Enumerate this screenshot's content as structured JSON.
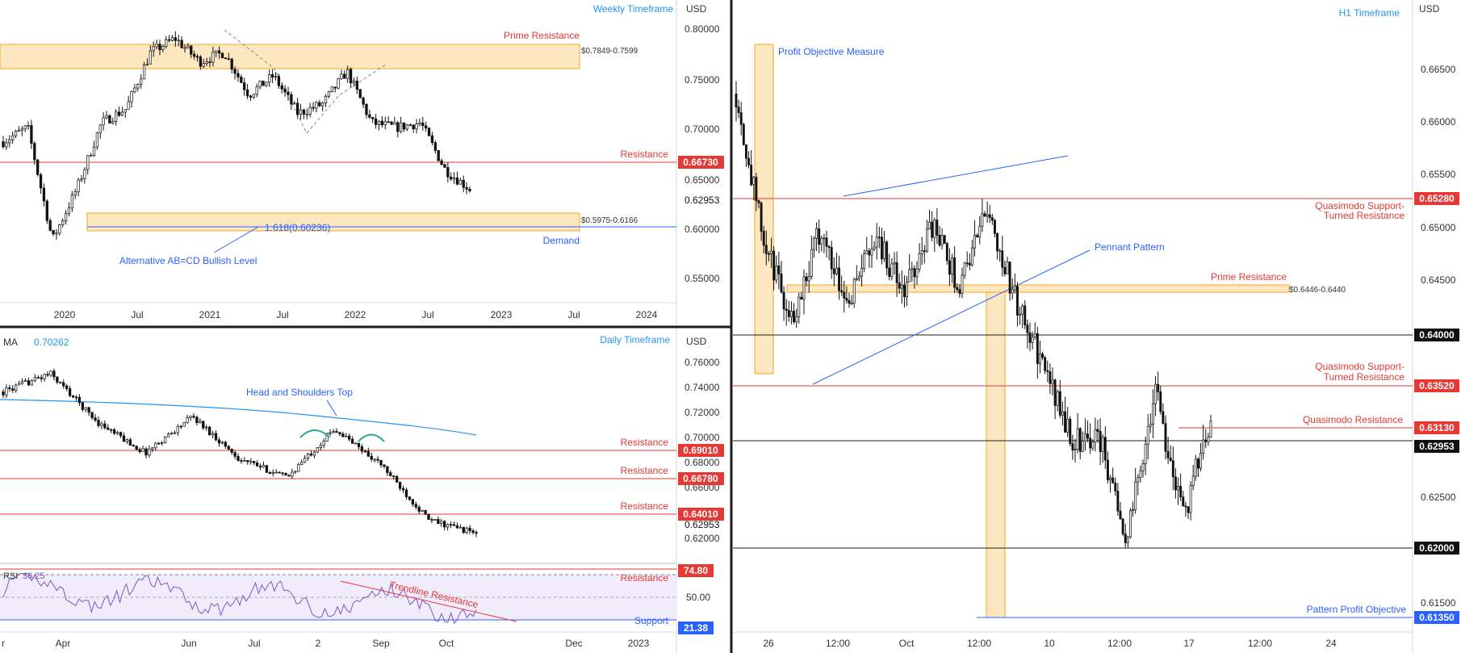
{
  "colors": {
    "up": "#ffffff",
    "down": "#111111",
    "wick": "#111111",
    "red_line": "#e53935",
    "blue_line": "#2962ff",
    "ma_line": "#2196f3",
    "zone_fill": "#fde7c1",
    "zone_stroke": "#f5a623",
    "rsi_line": "#7e57c2",
    "rsi_band": "#f1ecfb",
    "teal": "#26a69a"
  },
  "panels": {
    "weekly": {
      "timeframe": "Weekly Timeframe",
      "currency": "USD",
      "price_labels": [
        "0.80000",
        "0.75000",
        "0.70000",
        "0.65000",
        "0.60000",
        "0.55000"
      ],
      "current_price": "0.62953",
      "resistance_tag": "0.66730",
      "time_labels": [
        "2020",
        "Jul",
        "2021",
        "Jul",
        "2022",
        "Jul",
        "2023",
        "Jul",
        "2024"
      ],
      "annotations": {
        "prime_resistance": "Prime Resistance",
        "prime_zone": "$0.7849-0.7599",
        "resistance": "Resistance",
        "demand_zone": "$0.5975-0.6166",
        "fib": "1.618(0.60236)",
        "demand": "Demand",
        "abcd": "Alternative AB=CD Bullish Level"
      }
    },
    "daily": {
      "timeframe": "Daily Timeframe",
      "currency": "USD",
      "ma_label": "MA",
      "ma_value": "0.70262",
      "price_labels": [
        "0.76000",
        "0.74000",
        "0.72000",
        "0.70000",
        "0.68000",
        "0.66000",
        "0.62000"
      ],
      "current_price": "0.62953",
      "resistance_tags": [
        "0.69010",
        "0.66780",
        "0.64010"
      ],
      "time_labels": [
        "r",
        "Apr",
        "Jun",
        "Jul",
        "2",
        "Sep",
        "Oct",
        "Dec",
        "2023"
      ],
      "annotations": {
        "head_shoulders": "Head and Shoulders Top",
        "resistance_1": "Resistance",
        "resistance_2": "Resistance",
        "resistance_3": "Resistance"
      },
      "rsi": {
        "label": "RSI",
        "value": "36.25",
        "upper_tag": "74.80",
        "lower_tag": "21.38",
        "mid_label": "50.00",
        "trendline": "Trendline Resistance",
        "resistance": "Resistance",
        "support": "Support"
      }
    },
    "h1": {
      "timeframe": "H1 Timeframe",
      "currency": "USD",
      "price_labels": [
        "0.66500",
        "0.66000",
        "0.65500",
        "0.65000",
        "0.64500",
        "0.62500",
        "0.61500"
      ],
      "tags": [
        "0.65280",
        "0.64000",
        "0.63520",
        "0.63130",
        "0.62953",
        "0.62000",
        "0.61350"
      ],
      "time_labels": [
        "26",
        "12:00",
        "Oct",
        "12:00",
        "10",
        "12:00",
        "17",
        "12:00",
        "24"
      ],
      "annotations": {
        "profit_objective": "Profit Objective Measure",
        "qm_support_1": "Quasimodo Support-",
        "qm_support_1b": "Turned Resistance",
        "pennant": "Pennant Pattern",
        "prime_resistance": "Prime Resistance",
        "prime_zone": "$0.6446-0.6440",
        "qm_support_2": "Quasimodo Support-",
        "qm_support_2b": "Turned Resistance",
        "qm_resistance": "Quasimodo Resistance",
        "pattern_objective": "Pattern Profit Objective"
      }
    }
  },
  "chart_data": [
    {
      "type": "candlestick",
      "title": "Weekly Timeframe",
      "ylim": [
        0.53,
        0.805
      ],
      "x": [
        "2020",
        "Jul",
        "2021",
        "Jul",
        "2022",
        "Jul",
        "2023",
        "Jul",
        "2024"
      ],
      "close_path": [
        {
          "x": "2019-Oct",
          "y": 0.68
        },
        {
          "x": "2020-Jan",
          "y": 0.695
        },
        {
          "x": "2020-Mar",
          "y": 0.575
        },
        {
          "x": "2020-Apr",
          "y": 0.63
        },
        {
          "x": "2020-Jul",
          "y": 0.7
        },
        {
          "x": "2020-Oct",
          "y": 0.715
        },
        {
          "x": "2021-Jan",
          "y": 0.775
        },
        {
          "x": "2021-Feb",
          "y": 0.79
        },
        {
          "x": "2021-Mar",
          "y": 0.765
        },
        {
          "x": "2021-May",
          "y": 0.775
        },
        {
          "x": "2021-Aug",
          "y": 0.73
        },
        {
          "x": "2021-Oct",
          "y": 0.75
        },
        {
          "x": "2021-Dec",
          "y": 0.71
        },
        {
          "x": "2022-Feb",
          "y": 0.72
        },
        {
          "x": "2022-Apr",
          "y": 0.755
        },
        {
          "x": "2022-May",
          "y": 0.7
        },
        {
          "x": "2022-Jul",
          "y": 0.695
        },
        {
          "x": "2022-Aug",
          "y": 0.7
        },
        {
          "x": "2022-Sep",
          "y": 0.65
        },
        {
          "x": "2022-Oct",
          "y": 0.62953
        }
      ],
      "levels": {
        "resistance": 0.6673,
        "prime_zone": [
          0.7599,
          0.7849
        ],
        "demand_zone": [
          0.5975,
          0.6166
        ],
        "fib": 0.60236
      }
    },
    {
      "type": "candlestick",
      "title": "Daily Timeframe",
      "ylim": [
        0.61,
        0.775
      ],
      "x": [
        "Apr",
        "Jun",
        "Jul",
        "Sep",
        "Oct",
        "Dec",
        "2023"
      ],
      "close_path": [
        {
          "x": "Mar",
          "y": 0.745
        },
        {
          "x": "Apr",
          "y": 0.76
        },
        {
          "x": "Apr-end",
          "y": 0.72
        },
        {
          "x": "May",
          "y": 0.695
        },
        {
          "x": "Jun",
          "y": 0.725
        },
        {
          "x": "Jun-end",
          "y": 0.69
        },
        {
          "x": "Jul",
          "y": 0.675
        },
        {
          "x": "Aug",
          "y": 0.715
        },
        {
          "x": "Sep",
          "y": 0.685
        },
        {
          "x": "Oct",
          "y": 0.64
        },
        {
          "x": "Oct-mid",
          "y": 0.62953
        }
      ],
      "ma": 0.70262,
      "levels": {
        "resistance": [
          0.6901,
          0.6678,
          0.6401
        ]
      }
    },
    {
      "type": "line",
      "title": "RSI",
      "ylim": [
        15,
        80
      ],
      "value": 36.25,
      "levels": {
        "upper": 74.8,
        "lower": 21.38,
        "mid": 50
      }
    },
    {
      "type": "candlestick",
      "title": "H1 Timeframe",
      "ylim": [
        0.6125,
        0.669
      ],
      "x": [
        "26",
        "12:00",
        "Oct",
        "12:00",
        "10",
        "12:00",
        "17",
        "12:00",
        "24"
      ],
      "close_path": [
        {
          "x": "Sep-23",
          "y": 0.665
        },
        {
          "x": "Sep-26",
          "y": 0.649
        },
        {
          "x": "Sep-27",
          "y": 0.641
        },
        {
          "x": "Sep-28",
          "y": 0.6505
        },
        {
          "x": "Sep-29",
          "y": 0.643
        },
        {
          "x": "Sep-30",
          "y": 0.65
        },
        {
          "x": "Oct-3",
          "y": 0.6435
        },
        {
          "x": "Oct-4",
          "y": 0.651
        },
        {
          "x": "Oct-5",
          "y": 0.6445
        },
        {
          "x": "Oct-6",
          "y": 0.653
        },
        {
          "x": "Oct-7",
          "y": 0.643
        },
        {
          "x": "Oct-10",
          "y": 0.636
        },
        {
          "x": "Oct-11",
          "y": 0.628
        },
        {
          "x": "Oct-12",
          "y": 0.6285
        },
        {
          "x": "Oct-13",
          "y": 0.6175
        },
        {
          "x": "Oct-14",
          "y": 0.6335
        },
        {
          "x": "Oct-17",
          "y": 0.6195
        },
        {
          "x": "Oct-18",
          "y": 0.6306
        }
      ],
      "levels": {
        "qm_support_1": 0.6528,
        "round": 0.64,
        "qm_support_2": 0.6352,
        "qm_resistance": 0.6313,
        "current": 0.62953,
        "round_low": 0.62,
        "objective": 0.6135
      }
    }
  ]
}
